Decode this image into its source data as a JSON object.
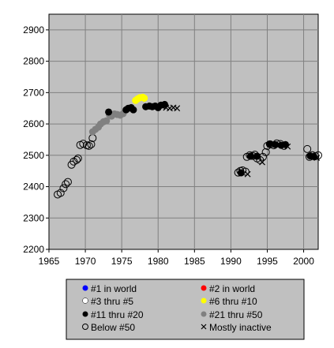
{
  "chart_data": {
    "type": "scatter",
    "title": "",
    "xlabel": "",
    "ylabel": "",
    "xlim": [
      1965,
      2002
    ],
    "ylim": [
      2200,
      2950
    ],
    "xticks": [
      1965,
      1970,
      1975,
      1980,
      1985,
      1990,
      1995,
      2000
    ],
    "yticks": [
      2200,
      2300,
      2400,
      2500,
      2600,
      2700,
      2800,
      2900
    ],
    "grid": true,
    "plot_background": "#c0c0c0",
    "legend_position": "bottom",
    "legend": [
      {
        "label": "#1 in world",
        "marker": "dot",
        "color": "#0000ff"
      },
      {
        "label": "#2 in world",
        "marker": "dot",
        "color": "#ff0000"
      },
      {
        "label": "#3 thru #5",
        "marker": "dot",
        "color": "#ffffff"
      },
      {
        "label": "#6 thru #10",
        "marker": "dot",
        "color": "#ffff00"
      },
      {
        "label": "#11 thru #20",
        "marker": "dot",
        "color": "#000000"
      },
      {
        "label": "#21 thru #50",
        "marker": "dot",
        "color": "#808080"
      },
      {
        "label": "Below #50",
        "marker": "open-circle",
        "color": "#000000"
      },
      {
        "label": "Mostly inactive",
        "marker": "x",
        "color": "#000000"
      }
    ],
    "series": [
      {
        "marker": "open-circle",
        "color": "#000000",
        "points": [
          [
            1966.2,
            2375
          ],
          [
            1966.6,
            2380
          ],
          [
            1967.0,
            2395
          ],
          [
            1967.3,
            2408
          ],
          [
            1967.6,
            2415
          ],
          [
            1968.1,
            2470
          ],
          [
            1968.4,
            2480
          ],
          [
            1968.8,
            2485
          ],
          [
            1969.0,
            2490
          ],
          [
            1969.3,
            2533
          ],
          [
            1969.7,
            2537
          ],
          [
            1970.2,
            2532
          ],
          [
            1970.5,
            2530
          ],
          [
            1970.8,
            2535
          ],
          [
            1971.0,
            2555
          ],
          [
            1991.0,
            2445
          ],
          [
            1991.3,
            2450
          ],
          [
            1991.6,
            2452
          ],
          [
            1992.0,
            2448
          ],
          [
            1992.2,
            2495
          ],
          [
            1992.6,
            2500
          ],
          [
            1993.0,
            2498
          ],
          [
            1993.3,
            2502
          ],
          [
            1993.6,
            2490
          ],
          [
            1994.0,
            2485
          ],
          [
            1994.4,
            2495
          ],
          [
            1994.8,
            2510
          ],
          [
            1995.0,
            2530
          ],
          [
            1995.4,
            2535
          ],
          [
            1995.9,
            2532
          ],
          [
            1996.3,
            2538
          ],
          [
            1996.8,
            2536
          ],
          [
            1997.3,
            2530
          ],
          [
            2000.5,
            2520
          ],
          [
            2000.8,
            2495
          ],
          [
            2001.2,
            2500
          ],
          [
            2001.6,
            2497
          ],
          [
            2002.0,
            2500
          ]
        ]
      },
      {
        "marker": "x",
        "color": "#000000",
        "points": [
          [
            1980.6,
            2655
          ],
          [
            1981.1,
            2652
          ],
          [
            1981.6,
            2650
          ],
          [
            1982.1,
            2652
          ],
          [
            1982.6,
            2650
          ],
          [
            1992.3,
            2440
          ],
          [
            1994.3,
            2478
          ],
          [
            1997.8,
            2528
          ],
          [
            2001.8,
            2492
          ]
        ]
      },
      {
        "marker": "dot",
        "color": "#808080",
        "points": [
          [
            1971.0,
            2575
          ],
          [
            1971.4,
            2583
          ],
          [
            1971.8,
            2590
          ],
          [
            1972.1,
            2600
          ],
          [
            1972.5,
            2607
          ],
          [
            1972.9,
            2610
          ],
          [
            1973.3,
            2630
          ],
          [
            1973.6,
            2625
          ],
          [
            1974.0,
            2632
          ],
          [
            1974.4,
            2630
          ],
          [
            1974.8,
            2628
          ],
          [
            1975.2,
            2633
          ]
        ]
      },
      {
        "marker": "dot",
        "color": "#000000",
        "points": [
          [
            1973.2,
            2638
          ],
          [
            1975.6,
            2645
          ],
          [
            1975.9,
            2650
          ],
          [
            1976.3,
            2652
          ],
          [
            1976.6,
            2645
          ],
          [
            1978.3,
            2655
          ],
          [
            1978.8,
            2657
          ],
          [
            1979.2,
            2655
          ],
          [
            1979.6,
            2657
          ],
          [
            1980.0,
            2652
          ],
          [
            1980.4,
            2660
          ],
          [
            1980.9,
            2662
          ],
          [
            1991.4,
            2444
          ],
          [
            1992.7,
            2497
          ],
          [
            1993.6,
            2497
          ],
          [
            1995.3,
            2536
          ],
          [
            1996.1,
            2534
          ],
          [
            1996.9,
            2532
          ],
          [
            1997.5,
            2534
          ],
          [
            2000.9,
            2498
          ],
          [
            2001.4,
            2496
          ]
        ]
      },
      {
        "marker": "dot",
        "color": "#ffff00",
        "points": [
          [
            1976.9,
            2675
          ],
          [
            1977.2,
            2680
          ],
          [
            1977.5,
            2684
          ],
          [
            1977.9,
            2685
          ],
          [
            1978.1,
            2682
          ]
        ]
      }
    ]
  }
}
